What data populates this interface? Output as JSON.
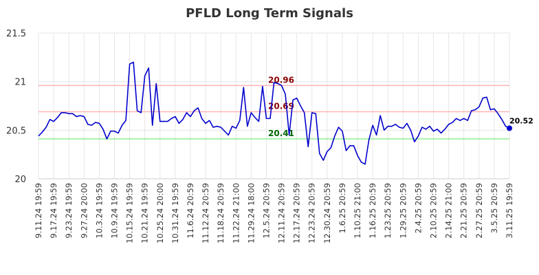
{
  "chart_data": {
    "type": "line",
    "title": "PFLD Long Term Signals",
    "xlabel": "",
    "ylabel": "",
    "ylim": [
      20,
      21.5
    ],
    "yticks": [
      "20",
      "20.5",
      "21",
      "21.5"
    ],
    "grid": true,
    "x_tick_labels": [
      "9.11.24 19:59",
      "9.17.24 19:59",
      "9.23.24 19:59",
      "9.27.24 20:00",
      "10.3.24 19:59",
      "10.9.24 19:59",
      "10.15.24 19:59",
      "10.21.24 19:59",
      "10.25.24 20:00",
      "10.31.24 19:59",
      "11.6.24 20:59",
      "11.12.24 20:59",
      "11.18.24 20:59",
      "11.22.24 21:00",
      "11.29.24 18:00",
      "12.5.24 20:59",
      "12.11.24 20:59",
      "12.17.24 20:59",
      "12.23.24 20:59",
      "12.30.24 20:59",
      "1.6.25 20:59",
      "1.10.25 21:00",
      "1.16.25 20:59",
      "1.23.25 20:59",
      "1.29.25 20:59",
      "2.4.25 20:59",
      "2.10.25 20:59",
      "2.14.25 21:00",
      "2.21.25 20:59",
      "2.27.25 20:59",
      "3.5.25 20:59",
      "3.11.25 19:59"
    ],
    "levels": [
      {
        "value": 20.96,
        "label": "20.96",
        "line_color": "#ffb3b3",
        "text_color": "#8b0000"
      },
      {
        "value": 20.69,
        "label": "20.69",
        "line_color": "#ffb3b3",
        "text_color": "#8b0000"
      },
      {
        "value": 20.41,
        "label": "20.41",
        "line_color": "#90ee90",
        "text_color": "#006400"
      }
    ],
    "series": [
      {
        "color": "#0000cc",
        "values": [
          20.44,
          20.48,
          20.53,
          20.61,
          20.59,
          20.63,
          20.68,
          20.68,
          20.67,
          20.67,
          20.64,
          20.65,
          20.64,
          20.56,
          20.55,
          20.58,
          20.57,
          20.51,
          20.41,
          20.49,
          20.49,
          20.47,
          20.55,
          20.6,
          21.18,
          21.2,
          20.7,
          20.68,
          21.06,
          21.14,
          20.55,
          20.98,
          20.59,
          20.59,
          20.59,
          20.62,
          20.64,
          20.57,
          20.61,
          20.68,
          20.64,
          20.7,
          20.73,
          20.62,
          20.57,
          20.6,
          20.53,
          20.54,
          20.53,
          20.49,
          20.45,
          20.54,
          20.52,
          20.6,
          20.94,
          20.54,
          20.68,
          20.63,
          20.59,
          20.95,
          20.62,
          20.62,
          20.99,
          20.98,
          20.96,
          20.87,
          20.45,
          20.81,
          20.83,
          20.75,
          20.68,
          20.33,
          20.68,
          20.67,
          20.26,
          20.19,
          20.28,
          20.32,
          20.44,
          20.53,
          20.49,
          20.29,
          20.34,
          20.34,
          20.24,
          20.17,
          20.15,
          20.4,
          20.55,
          20.45,
          20.65,
          20.5,
          20.54,
          20.54,
          20.56,
          20.53,
          20.52,
          20.57,
          20.5,
          20.38,
          20.44,
          20.53,
          20.51,
          20.54,
          20.49,
          20.51,
          20.47,
          20.51,
          20.56,
          20.58,
          20.62,
          20.6,
          20.62,
          20.6,
          20.7,
          20.71,
          20.74,
          20.83,
          20.84,
          20.71,
          20.72,
          20.67,
          20.61,
          20.54,
          20.52
        ]
      }
    ],
    "last_value_label": "20.52",
    "colors": {
      "axis": "#cccccc",
      "grid": "#e6e6e6",
      "line": "#0000cc",
      "marker": "#0000cc"
    }
  }
}
